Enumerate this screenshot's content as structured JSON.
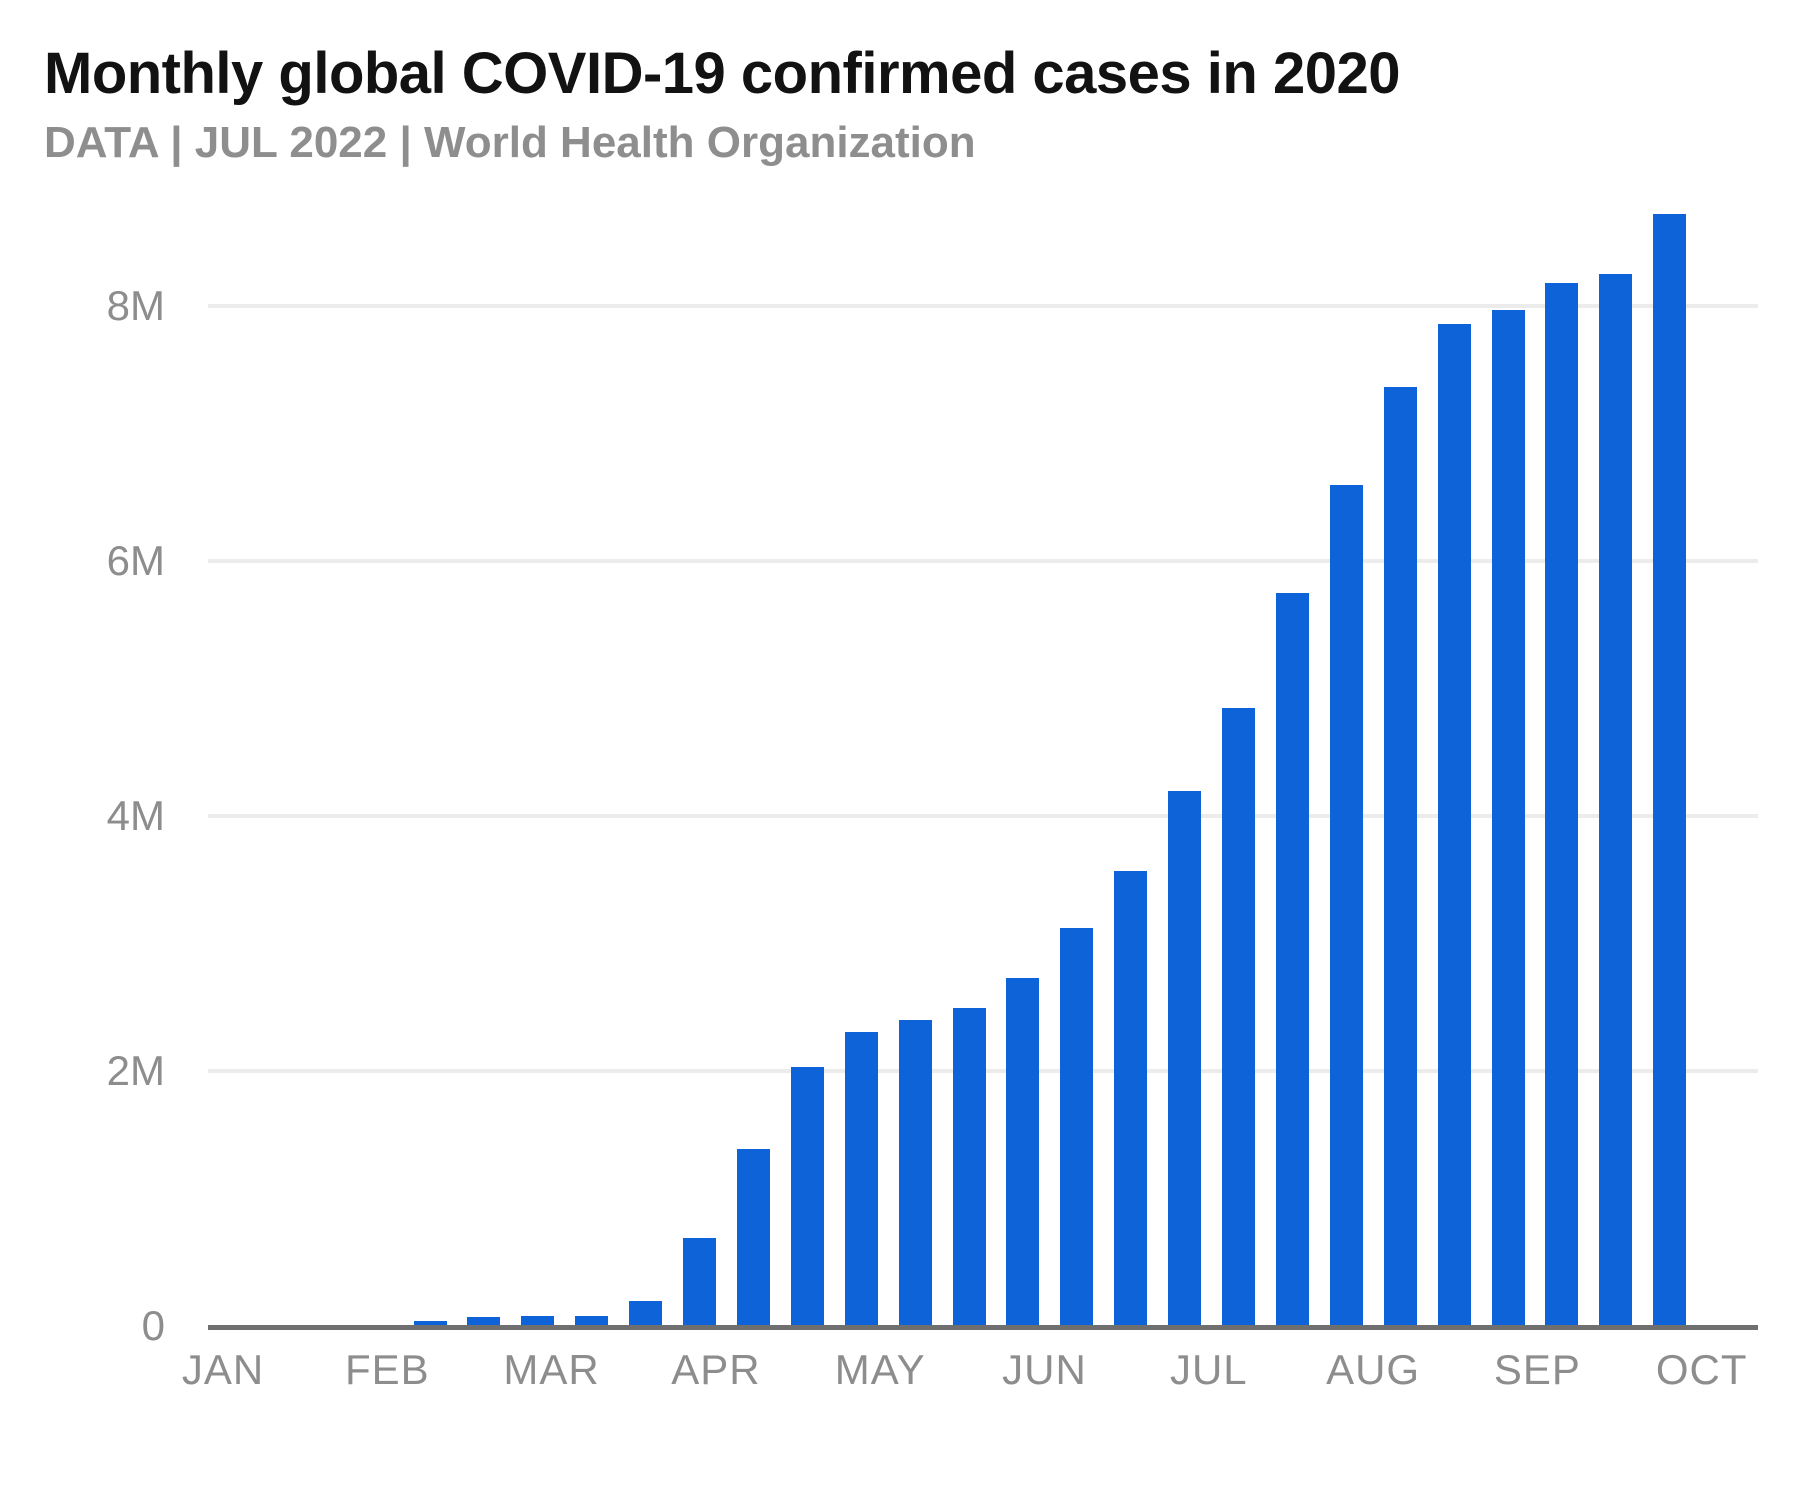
{
  "header": {
    "title": "Monthly global COVID-19 confirmed cases in 2020",
    "subtitle": "DATA | JUL 2022 | World Health Organization"
  },
  "chart_data": {
    "type": "bar",
    "title": "Monthly global COVID-19 confirmed cases in 2020",
    "subtitle": "DATA | JUL 2022 | World Health Organization",
    "xlabel": "",
    "ylabel": "",
    "unit": "millions of confirmed cases",
    "x_tick_labels": [
      "JAN",
      "FEB",
      "MAR",
      "APR",
      "MAY",
      "JUN",
      "JUL",
      "AUG",
      "SEP",
      "OCT"
    ],
    "y_ticks": [
      {
        "label": "0",
        "value": 0
      },
      {
        "label": "2M",
        "value": 2
      },
      {
        "label": "4M",
        "value": 4
      },
      {
        "label": "6M",
        "value": 6
      },
      {
        "label": "8M",
        "value": 8
      }
    ],
    "ylim": [
      0,
      8.9
    ],
    "grid": "horizontal",
    "legend": "none",
    "bars_start_after_month": "FEB",
    "bars_per_month": 3,
    "values_millions": [
      0.03,
      0.06,
      0.07,
      0.07,
      0.19,
      0.68,
      1.38,
      2.02,
      2.3,
      2.39,
      2.49,
      2.72,
      3.11,
      3.56,
      4.19,
      4.84,
      5.74,
      6.59,
      7.36,
      7.85,
      7.96,
      8.17,
      8.24,
      8.71
    ],
    "colors": {
      "bar": "#0e63d9",
      "grid": "#ececec",
      "axis": "#6f6f6f",
      "tick_label": "#8d8d8d",
      "title": "#121212",
      "subtitle": "#8e8e8e",
      "background": "#ffffff"
    }
  }
}
